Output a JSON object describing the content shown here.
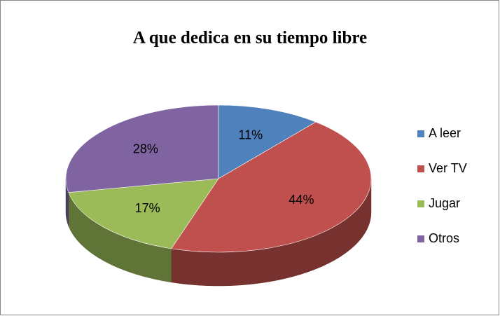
{
  "chart_data": {
    "type": "pie",
    "title": "A que dedica en su tiempo libre",
    "categories": [
      "A leer",
      "Ver TV",
      "Jugar",
      "Otros"
    ],
    "values": [
      11,
      44,
      17,
      28
    ],
    "value_labels": [
      "11%",
      "44%",
      "17%",
      "28%"
    ],
    "colors": [
      "#4f81bd",
      "#c0504d",
      "#9bbb59",
      "#8064a2"
    ],
    "legend": "right"
  }
}
